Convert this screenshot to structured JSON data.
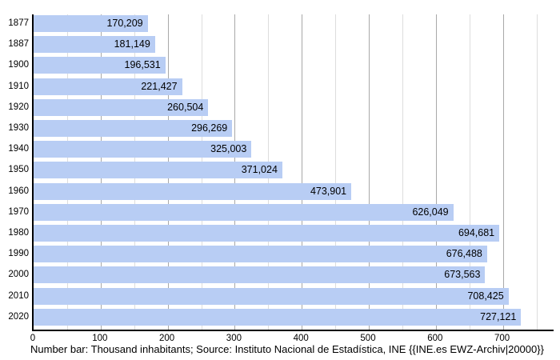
{
  "chart_data": {
    "type": "bar",
    "orientation": "horizontal",
    "title": "",
    "xlabel": "",
    "ylabel": "",
    "categories": [
      "1877",
      "1887",
      "1900",
      "1910",
      "1920",
      "1930",
      "1940",
      "1950",
      "1960",
      "1970",
      "1980",
      "1990",
      "2000",
      "2010",
      "2020"
    ],
    "values": [
      170209,
      181149,
      196531,
      221427,
      260504,
      296269,
      325003,
      371024,
      473901,
      626049,
      694681,
      676488,
      673563,
      708425,
      727121
    ],
    "value_labels": [
      "170,209",
      "181,149",
      "196,531",
      "221,427",
      "260,504",
      "296,269",
      "325,003",
      "371,024",
      "473,901",
      "626,049",
      "694,681",
      "676,488",
      "673,563",
      "708,425",
      "727,121"
    ],
    "x_ticks_thousands": [
      0,
      100,
      200,
      300,
      400,
      500,
      600,
      700
    ],
    "x_tick_labels": [
      "0",
      "100",
      "200",
      "300",
      "400",
      "500",
      "600",
      "700"
    ],
    "xlim_thousands": [
      0,
      778
    ],
    "unit_note": "Thousand inhabitants",
    "grid": {
      "minor_step": 50,
      "major_step": 100,
      "max_line": 750,
      "minor_color": "#dddddd",
      "major_color": "#a8a8a8"
    },
    "bar_color": "#b8cdf4",
    "axis_color": "#000000",
    "legend": "none"
  },
  "caption": {
    "text": "Number bar: Thousand inhabitants; Source: Instituto Nacional de Estadística, INE {{INE.es EWZ-Archiv|20000}}"
  }
}
